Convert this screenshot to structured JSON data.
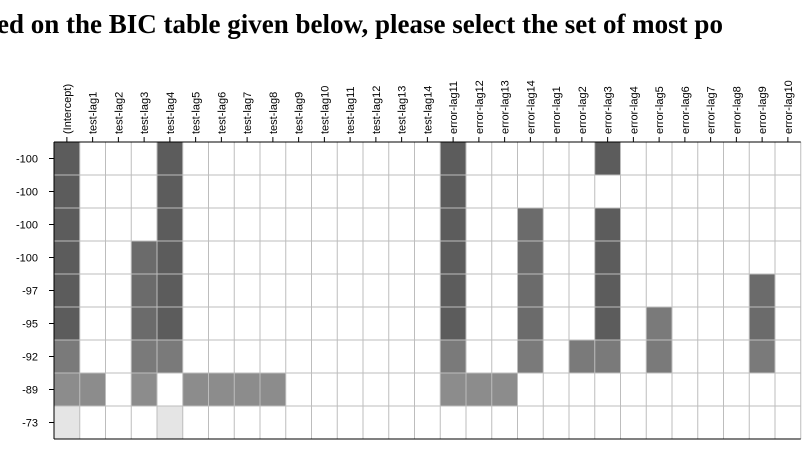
{
  "question": {
    "text": "ed on the BIC table given below, please select the set of most po"
  },
  "chart_data": {
    "type": "heatmap",
    "title": "",
    "xlabel": "",
    "ylabel": "",
    "columns": [
      "(Intercept)",
      "test-lag1",
      "test-lag2",
      "test-lag3",
      "test-lag4",
      "test-lag5",
      "test-lag6",
      "test-lag7",
      "test-lag8",
      "test-lag9",
      "test-lag10",
      "test-lag11",
      "test-lag12",
      "test-lag13",
      "test-lag14",
      "error-lag11",
      "error-lag12",
      "error-lag13",
      "error-lag14",
      "error-lag1",
      "error-lag2",
      "error-lag3",
      "error-lag4",
      "error-lag5",
      "error-lag6",
      "error-lag7",
      "error-lag8",
      "error-lag9",
      "error-lag10"
    ],
    "rows": [
      "-100",
      "-100",
      "-100",
      "-100",
      "-97",
      "-95",
      "-92",
      "-89",
      "-73"
    ],
    "shade_levels": {
      "0": "#ffffff",
      "1": "#e5e5e5",
      "2": "#8c8c8c",
      "3": "#7a7a7a",
      "4": "#6b6b6b",
      "5": "#5c5c5c"
    },
    "cells": [
      [
        5,
        0,
        0,
        0,
        5,
        0,
        0,
        0,
        0,
        0,
        0,
        0,
        0,
        0,
        0,
        5,
        0,
        0,
        0,
        0,
        0,
        5,
        0,
        0,
        0,
        0,
        0,
        0,
        0
      ],
      [
        5,
        0,
        0,
        0,
        5,
        0,
        0,
        0,
        0,
        0,
        0,
        0,
        0,
        0,
        0,
        5,
        0,
        0,
        0,
        0,
        0,
        0,
        0,
        0,
        0,
        0,
        0,
        0,
        0
      ],
      [
        5,
        0,
        0,
        0,
        5,
        0,
        0,
        0,
        0,
        0,
        0,
        0,
        0,
        0,
        0,
        5,
        0,
        0,
        4,
        0,
        0,
        5,
        0,
        0,
        0,
        0,
        0,
        0,
        0
      ],
      [
        5,
        0,
        0,
        4,
        5,
        0,
        0,
        0,
        0,
        0,
        0,
        0,
        0,
        0,
        0,
        5,
        0,
        0,
        4,
        0,
        0,
        5,
        0,
        0,
        0,
        0,
        0,
        0,
        0
      ],
      [
        5,
        0,
        0,
        4,
        5,
        0,
        0,
        0,
        0,
        0,
        0,
        0,
        0,
        0,
        0,
        5,
        0,
        0,
        4,
        0,
        0,
        5,
        0,
        0,
        0,
        0,
        0,
        4,
        0
      ],
      [
        5,
        0,
        0,
        4,
        5,
        0,
        0,
        0,
        0,
        0,
        0,
        0,
        0,
        0,
        0,
        5,
        0,
        0,
        4,
        0,
        0,
        5,
        0,
        3,
        0,
        0,
        0,
        4,
        0
      ],
      [
        3,
        0,
        0,
        3,
        3,
        0,
        0,
        0,
        0,
        0,
        0,
        0,
        0,
        0,
        0,
        3,
        0,
        0,
        3,
        0,
        3,
        3,
        0,
        3,
        0,
        0,
        0,
        3,
        0
      ],
      [
        2,
        2,
        0,
        2,
        0,
        2,
        2,
        2,
        2,
        0,
        0,
        0,
        0,
        0,
        0,
        2,
        2,
        2,
        0,
        0,
        0,
        0,
        0,
        0,
        0,
        0,
        0,
        0,
        0
      ],
      [
        1,
        0,
        0,
        0,
        1,
        0,
        0,
        0,
        0,
        0,
        0,
        0,
        0,
        0,
        0,
        0,
        0,
        0,
        0,
        0,
        0,
        0,
        0,
        0,
        0,
        0,
        0,
        0,
        0
      ]
    ],
    "grid": true,
    "legend": "none"
  }
}
